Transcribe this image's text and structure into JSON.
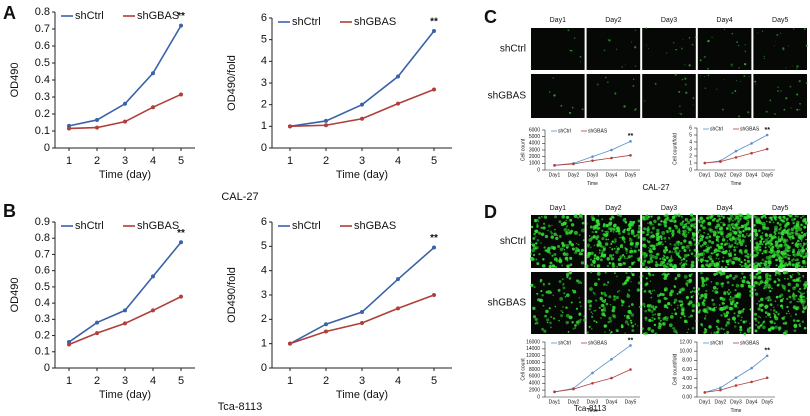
{
  "panel_labels": [
    "A",
    "B",
    "C",
    "D"
  ],
  "cell_lines": [
    "CAL-27",
    "Tca-8113",
    "CAL-27",
    "Tca-8113"
  ],
  "microscopy": [
    {
      "days": [
        "Day1",
        "Day2",
        "Day3",
        "Day4",
        "Day5"
      ],
      "rows": [
        "shCtrl",
        "shGBAS"
      ]
    },
    {
      "days": [
        "Day1",
        "Day2",
        "Day3",
        "Day4",
        "Day5"
      ],
      "rows": [
        "shCtrl",
        "shGBAS"
      ]
    }
  ],
  "chart_data": [
    {
      "type": "line",
      "y_label": "OD490",
      "x_label": "Time (day)",
      "annotation": "**",
      "legend": "upper left",
      "x": [
        1,
        2,
        3,
        4,
        5
      ],
      "xlim": [
        0.5,
        5.5
      ],
      "xticks": [
        1,
        2,
        3,
        4,
        5
      ],
      "ylim": [
        0,
        0.8
      ],
      "yticks": [
        0,
        0.1,
        0.2,
        0.3,
        0.4,
        0.5,
        0.6,
        0.7,
        0.8
      ],
      "series": [
        {
          "name": "shCtrl",
          "color": "#3a62a8",
          "values": [
            0.13,
            0.165,
            0.26,
            0.44,
            0.72
          ]
        },
        {
          "name": "shGBAS",
          "color": "#b03e3a",
          "values": [
            0.115,
            0.12,
            0.155,
            0.24,
            0.315
          ]
        }
      ]
    },
    {
      "type": "line",
      "y_label": "OD490/fold",
      "x_label": "Time (day)",
      "annotation": "**",
      "legend": "upper left",
      "x": [
        1,
        2,
        3,
        4,
        5
      ],
      "xlim": [
        0.5,
        5.5
      ],
      "xticks": [
        1,
        2,
        3,
        4,
        5
      ],
      "ylim": [
        0,
        6
      ],
      "yticks": [
        0,
        1,
        2,
        3,
        4,
        5,
        6
      ],
      "series": [
        {
          "name": "shCtrl",
          "color": "#3a62a8",
          "values": [
            1,
            1.25,
            2.0,
            3.3,
            5.4
          ]
        },
        {
          "name": "shGBAS",
          "color": "#b03e3a",
          "values": [
            1,
            1.05,
            1.35,
            2.05,
            2.7
          ]
        }
      ]
    },
    {
      "type": "line",
      "y_label": "OD490",
      "x_label": "Time (day)",
      "annotation": "**",
      "legend": "upper left",
      "x": [
        1,
        2,
        3,
        4,
        5
      ],
      "xlim": [
        0.5,
        5.5
      ],
      "xticks": [
        1,
        2,
        3,
        4,
        5
      ],
      "ylim": [
        0,
        0.9
      ],
      "yticks": [
        0,
        0.1,
        0.2,
        0.3,
        0.4,
        0.5,
        0.6,
        0.7,
        0.8,
        0.9
      ],
      "series": [
        {
          "name": "shCtrl",
          "color": "#3a62a8",
          "values": [
            0.16,
            0.28,
            0.355,
            0.565,
            0.775
          ]
        },
        {
          "name": "shGBAS",
          "color": "#b03e3a",
          "values": [
            0.145,
            0.215,
            0.275,
            0.355,
            0.44
          ]
        }
      ]
    },
    {
      "type": "line",
      "y_label": "OD490/fold",
      "x_label": "Time (day)",
      "annotation": "**",
      "legend": "upper left",
      "x": [
        1,
        2,
        3,
        4,
        5
      ],
      "xlim": [
        0.5,
        5.5
      ],
      "xticks": [
        1,
        2,
        3,
        4,
        5
      ],
      "ylim": [
        0,
        6
      ],
      "yticks": [
        0,
        1,
        2,
        3,
        4,
        5,
        6
      ],
      "series": [
        {
          "name": "shCtrl",
          "color": "#3a62a8",
          "values": [
            1,
            1.8,
            2.3,
            3.65,
            4.95
          ]
        },
        {
          "name": "shGBAS",
          "color": "#b03e3a",
          "values": [
            1,
            1.5,
            1.85,
            2.45,
            3.0
          ]
        }
      ]
    },
    {
      "type": "line",
      "y_label": "Cell count",
      "x_label": "Time",
      "annotation": "**",
      "legend": "upper left",
      "categories": [
        "Day1",
        "Day2",
        "Day3",
        "Day4",
        "Day5"
      ],
      "ylim": [
        0,
        6000
      ],
      "yticks": [
        0,
        1000,
        2000,
        3000,
        4000,
        5000,
        6000
      ],
      "series": [
        {
          "name": "shCtrl",
          "color": "#5b8fc9",
          "values": [
            700,
            1000,
            2000,
            3000,
            4300
          ]
        },
        {
          "name": "shGBAS",
          "color": "#b03e3a",
          "values": [
            700,
            900,
            1400,
            1800,
            2200
          ]
        }
      ]
    },
    {
      "type": "line",
      "y_label": "Cell count/fold",
      "x_label": "Time",
      "annotation": "**",
      "legend": "upper left",
      "categories": [
        "Day1",
        "Day2",
        "Day3",
        "Day4",
        "Day5"
      ],
      "ylim": [
        0,
        6
      ],
      "yticks": [
        0,
        1,
        2,
        3,
        4,
        5,
        6
      ],
      "series": [
        {
          "name": "shCtrl",
          "color": "#5b8fc9",
          "values": [
            1,
            1.3,
            2.7,
            3.8,
            5.0
          ]
        },
        {
          "name": "shGBAS",
          "color": "#b03e3a",
          "values": [
            1,
            1.2,
            1.8,
            2.4,
            3.0
          ]
        }
      ]
    },
    {
      "type": "line",
      "y_label": "Cell count",
      "x_label": "Time",
      "annotation": "**",
      "legend": "upper left",
      "categories": [
        "Day1",
        "Day2",
        "Day3",
        "Day4",
        "Day5"
      ],
      "ylim": [
        0,
        16000
      ],
      "yticks": [
        0,
        2000,
        4000,
        6000,
        8000,
        10000,
        12000,
        14000,
        16000
      ],
      "series": [
        {
          "name": "shCtrl",
          "color": "#5b8fc9",
          "values": [
            1500,
            2500,
            7000,
            11000,
            15000
          ]
        },
        {
          "name": "shGBAS",
          "color": "#b03e3a",
          "values": [
            1500,
            2300,
            4000,
            5500,
            8000
          ]
        }
      ]
    },
    {
      "type": "line",
      "y_label": "Cell count/fold",
      "x_label": "Time",
      "annotation": "**",
      "legend": "upper left",
      "categories": [
        "Day1",
        "Day2",
        "Day3",
        "Day4",
        "Day5"
      ],
      "ylim": [
        0,
        12
      ],
      "yticks": [
        {
          "value": 0,
          "label": "0.00"
        },
        {
          "value": 2,
          "label": "2.00"
        },
        {
          "value": 4,
          "label": "4.00"
        },
        {
          "value": 6,
          "label": "6.00"
        },
        {
          "value": 8,
          "label": "8.00"
        },
        {
          "value": 10,
          "label": "10.00"
        },
        {
          "value": 12,
          "label": "12.00"
        }
      ],
      "series": [
        {
          "name": "shCtrl",
          "color": "#5b8fc9",
          "values": [
            1,
            2,
            4.2,
            6.3,
            9
          ]
        },
        {
          "name": "shGBAS",
          "color": "#b03e3a",
          "values": [
            1,
            1.5,
            2.5,
            3.3,
            4.2
          ]
        }
      ]
    }
  ]
}
